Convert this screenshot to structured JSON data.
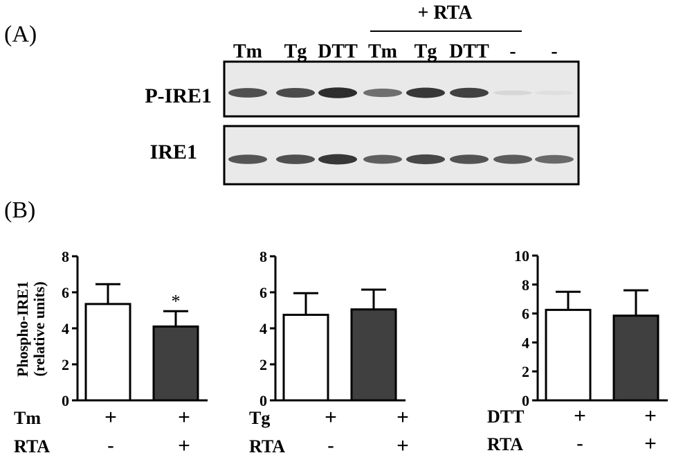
{
  "panel_a": {
    "label": "(A)",
    "rta_header": "+ RTA",
    "lanes": [
      "Tm",
      "Tg",
      "DTT",
      "Tm",
      "Tg",
      "DTT",
      "-",
      "-"
    ],
    "blots": [
      {
        "name": "P-IRE1",
        "band_intensity": [
          0.78,
          0.8,
          0.95,
          0.62,
          0.9,
          0.85,
          0.1,
          0.06
        ]
      },
      {
        "name": "IRE1",
        "band_intensity": [
          0.75,
          0.78,
          0.9,
          0.7,
          0.82,
          0.76,
          0.72,
          0.65
        ]
      }
    ]
  },
  "panel_b": {
    "label": "(B)"
  },
  "ylabel_line1": "Phospho-IRE1",
  "ylabel_line2": "(relative units)",
  "chart_data": [
    {
      "type": "bar",
      "ylim": [
        0,
        8
      ],
      "yticks": [
        "0",
        "2",
        "4",
        "6",
        "8"
      ],
      "values": [
        5.35,
        4.1
      ],
      "errors": [
        1.1,
        0.85
      ],
      "bar_colors": [
        "#ffffff",
        "#404040"
      ],
      "annotations": [
        "",
        "*"
      ],
      "row_labels": [
        "Tm",
        "RTA"
      ],
      "row_signs": [
        [
          "+",
          "+"
        ],
        [
          "-",
          "+"
        ]
      ]
    },
    {
      "type": "bar",
      "ylim": [
        0,
        8
      ],
      "yticks": [
        "0",
        "2",
        "4",
        "6",
        "8"
      ],
      "values": [
        4.75,
        5.05
      ],
      "errors": [
        1.2,
        1.1
      ],
      "bar_colors": [
        "#ffffff",
        "#404040"
      ],
      "annotations": [
        "",
        ""
      ],
      "row_labels": [
        "Tg",
        "RTA"
      ],
      "row_signs": [
        [
          "+",
          "+"
        ],
        [
          "-",
          "+"
        ]
      ]
    },
    {
      "type": "bar",
      "ylim": [
        0,
        10
      ],
      "yticks": [
        "0",
        "2",
        "4",
        "6",
        "8",
        "10"
      ],
      "values": [
        6.25,
        5.85
      ],
      "errors": [
        1.25,
        1.75
      ],
      "bar_colors": [
        "#ffffff",
        "#404040"
      ],
      "annotations": [
        "",
        ""
      ],
      "row_labels": [
        "DTT",
        "RTA"
      ],
      "row_signs": [
        [
          "+",
          "+"
        ],
        [
          "-",
          "+"
        ]
      ]
    }
  ]
}
